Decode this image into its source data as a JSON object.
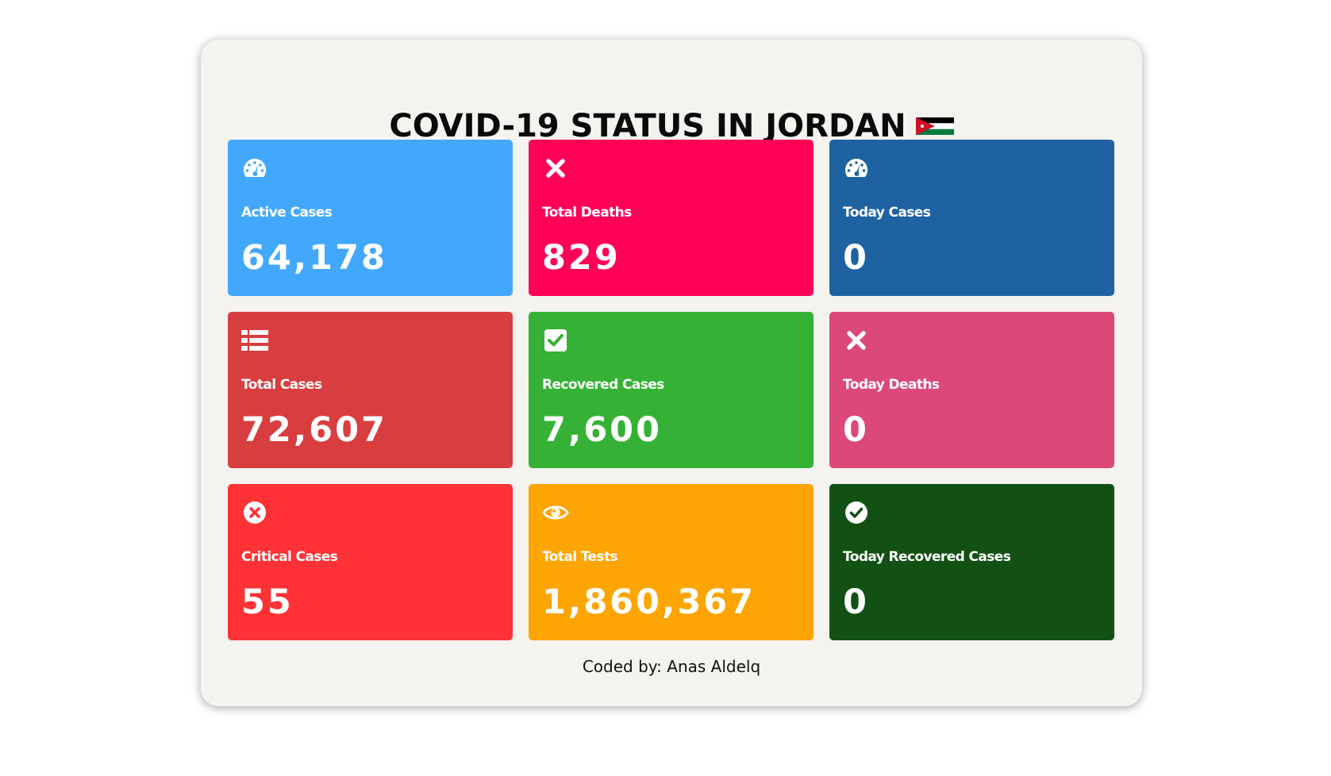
{
  "header": {
    "title": "COVID-19 STATUS IN JORDAN",
    "flag_icon": "jordan-flag-icon"
  },
  "colors": {
    "card_bg": "#f4f3ef",
    "active": "#42a8fc",
    "total_deaths": "#ff0156",
    "today_cases": "#1e62a1",
    "total_cases": "#d83e3f",
    "recovered": "#35b235",
    "today_deaths": "#dc4878",
    "critical": "#ff3236",
    "tests": "#fda502",
    "today_recovered": "#125113"
  },
  "stats": [
    {
      "label": "Active Cases",
      "value": "64,178",
      "icon": "dashboard-gauge-icon"
    },
    {
      "label": "Total Deaths",
      "value": "829",
      "icon": "close-x-icon"
    },
    {
      "label": "Today Cases",
      "value": "0",
      "icon": "dashboard-gauge-icon"
    },
    {
      "label": "Total Cases",
      "value": "72,607",
      "icon": "list-icon"
    },
    {
      "label": "Recovered Cases",
      "value": "7,600",
      "icon": "checkbox-checked-icon"
    },
    {
      "label": "Today Deaths",
      "value": "0",
      "icon": "close-x-icon"
    },
    {
      "label": "Critical Cases",
      "value": "55",
      "icon": "circle-x-icon"
    },
    {
      "label": "Total Tests",
      "value": "1,860,367",
      "icon": "eye-icon"
    },
    {
      "label": "Today Recovered Cases",
      "value": "0",
      "icon": "circle-check-icon"
    }
  ],
  "footer": {
    "text": "Coded by: Anas Aldelq"
  }
}
